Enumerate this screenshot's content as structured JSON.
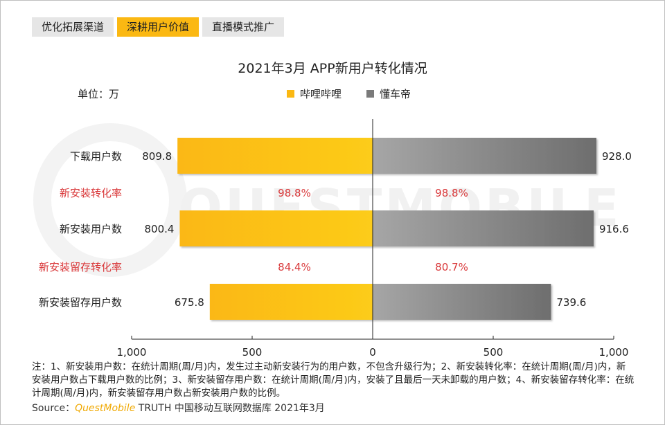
{
  "tabs": [
    {
      "label": "优化拓展渠道",
      "active": false
    },
    {
      "label": "深耕用户价值",
      "active": true
    },
    {
      "label": "直播模式推广",
      "active": false
    }
  ],
  "watermark": "QUESTMOBILE",
  "chart_data": {
    "type": "bar",
    "orientation": "horizontal-butterfly",
    "title": "2021年3月 APP新用户转化情况",
    "unit_label": "单位：万",
    "categories": [
      "下载用户数",
      "新安装用户数",
      "新安装留存用户数"
    ],
    "series": [
      {
        "name": "哔哩哔哩",
        "side": "left",
        "color": "#fbb812",
        "values": [
          809.8,
          800.4,
          675.8
        ],
        "value_labels": [
          "809.8",
          "800.4",
          "675.8"
        ]
      },
      {
        "name": "懂车帝",
        "side": "right",
        "color": "#7a7a7a",
        "values": [
          928.0,
          916.6,
          739.6
        ],
        "value_labels": [
          "928.0",
          "916.6",
          "739.6"
        ]
      }
    ],
    "rates": [
      {
        "label": "新安装转化率",
        "left": "98.8%",
        "right": "98.8%",
        "color": "#d9383a"
      },
      {
        "label": "新安装留存转化率",
        "left": "84.4%",
        "right": "80.7%",
        "color": "#d9383a"
      }
    ],
    "x_range": [
      -1000,
      1000
    ],
    "x_ticks": [
      {
        "value": -1000,
        "label": "1,000"
      },
      {
        "value": -500,
        "label": "500"
      },
      {
        "value": 0,
        "label": "0"
      },
      {
        "value": 500,
        "label": "500"
      },
      {
        "value": 1000,
        "label": "1,000"
      }
    ],
    "legend_position": "top-center",
    "grid": false
  },
  "notes": "注：1、新安装用户数：在统计周期(周/月)内，发生过主动新安装行为的用户数，不包含升级行为；2、新安装转化率：在统计周期(周/月)内，新安装用户数占下载用户数的比例；3、新安装留存用户数：在统计周期(周/月)内，安装了且最后一天未卸载的用户数；4、新安装留存转化率：在统计周期(周/月)内，新安装留存用户数占新安装用户数的比例。",
  "source": {
    "prefix": "Source：",
    "brand": "QuestMobile",
    "text": " TRUTH 中国移动互联网数据库 2021年3月"
  }
}
